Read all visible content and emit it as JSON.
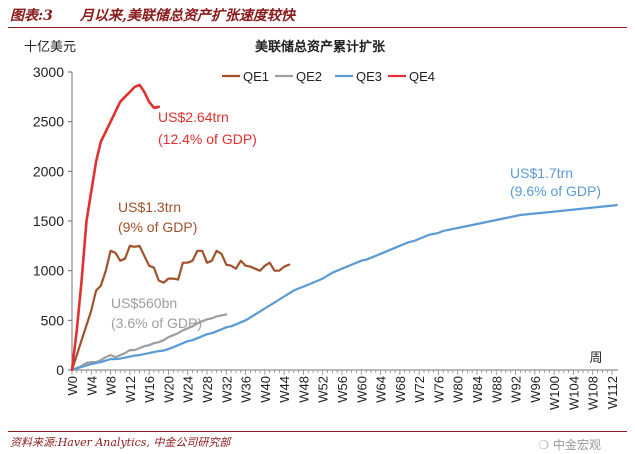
{
  "figure": {
    "label": "图表:3",
    "title": "月以来,美联储总资产扩张速度较快",
    "source": "资料来源:Haver Analytics, 中金公司研究部",
    "watermark": "中金宏观",
    "watermark_icon": "wechat-icon"
  },
  "chart_data": {
    "type": "line",
    "title": "美联储总资产累计扩张",
    "ylabel": "十亿美元",
    "xlabel": "周",
    "ylim": [
      0,
      3000
    ],
    "yticks": [
      0,
      500,
      1000,
      1500,
      2000,
      2500,
      3000
    ],
    "xlim": [
      0,
      112
    ],
    "xtick_labels": [
      "W0",
      "W4",
      "W8",
      "W12",
      "W16",
      "W20",
      "W24",
      "W28",
      "W32",
      "W36",
      "W40",
      "W44",
      "W48",
      "W52",
      "W56",
      "W60",
      "W64",
      "W68",
      "W72",
      "W76",
      "W80",
      "W84",
      "W88",
      "W92",
      "W96",
      "W100",
      "W104",
      "W108",
      "W112"
    ],
    "legend": [
      "QE1",
      "QE2",
      "QE3",
      "QE4"
    ],
    "legend_position": "top-center",
    "series": [
      {
        "name": "QE1",
        "color": "#a0522d",
        "values": [
          0,
          150,
          300,
          450,
          600,
          800,
          850,
          1000,
          1200,
          1180,
          1100,
          1120,
          1250,
          1240,
          1250,
          1150,
          1050,
          1030,
          900,
          880,
          920,
          920,
          910,
          1080,
          1080,
          1100,
          1200,
          1200,
          1080,
          1100,
          1200,
          1170,
          1060,
          1050,
          1020,
          1100,
          1050,
          1040,
          1020,
          1000,
          1050,
          1080,
          1000,
          1000,
          1040,
          1060
        ]
      },
      {
        "name": "QE2",
        "color": "#9e9e9e",
        "values": [
          0,
          20,
          40,
          70,
          80,
          80,
          100,
          130,
          150,
          130,
          150,
          170,
          200,
          200,
          220,
          240,
          250,
          270,
          280,
          300,
          330,
          350,
          370,
          400,
          420,
          440,
          470,
          490,
          510,
          520,
          540,
          550,
          560
        ]
      },
      {
        "name": "QE3",
        "color": "#5b9bd5",
        "values": [
          0,
          15,
          30,
          45,
          60,
          70,
          80,
          95,
          110,
          110,
          115,
          125,
          135,
          145,
          150,
          160,
          170,
          180,
          190,
          195,
          210,
          230,
          250,
          270,
          290,
          300,
          320,
          340,
          360,
          370,
          390,
          410,
          430,
          440,
          460,
          480,
          500,
          530,
          560,
          590,
          620,
          650,
          680,
          710,
          740,
          770,
          800,
          820,
          840,
          860,
          880,
          900,
          920,
          950,
          980,
          1000,
          1020,
          1040,
          1060,
          1080,
          1100,
          1110,
          1130,
          1150,
          1170,
          1190,
          1210,
          1230,
          1250,
          1270,
          1290,
          1300,
          1320,
          1340,
          1360,
          1370,
          1380,
          1400,
          1410,
          1420,
          1430,
          1440,
          1450,
          1460,
          1470,
          1480,
          1490,
          1500,
          1510,
          1520,
          1530,
          1540,
          1550,
          1560,
          1565,
          1570,
          1575,
          1580,
          1585,
          1590,
          1595,
          1600,
          1605,
          1610,
          1615,
          1620,
          1625,
          1630,
          1635,
          1640,
          1645,
          1650,
          1655,
          1660
        ]
      },
      {
        "name": "QE4",
        "color": "#e03030",
        "values": [
          0,
          400,
          900,
          1500,
          1800,
          2100,
          2300,
          2400,
          2500,
          2600,
          2700,
          2750,
          2800,
          2850,
          2870,
          2800,
          2700,
          2640,
          2650
        ]
      }
    ],
    "annotations": [
      {
        "series": "QE4",
        "lines": [
          "US$2.64trn",
          "(12.4% of GDP)"
        ]
      },
      {
        "series": "QE1",
        "lines": [
          "US$1.3trn",
          "(9% of GDP)"
        ]
      },
      {
        "series": "QE2",
        "lines": [
          "US$560bn",
          "(3.6% of GDP)"
        ]
      },
      {
        "series": "QE3",
        "lines": [
          "US$1.7trn",
          "(9.6% of GDP)"
        ]
      }
    ]
  }
}
